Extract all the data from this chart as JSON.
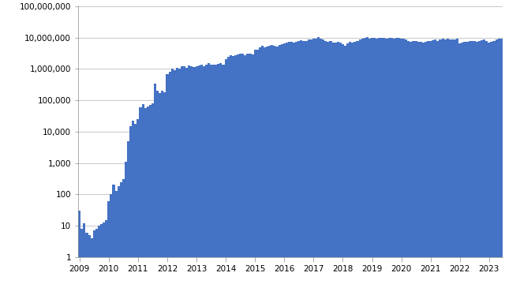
{
  "bar_color": "#4472C4",
  "background_color": "#ffffff",
  "ylim": [
    1,
    100000000
  ],
  "yticks": [
    1,
    10,
    100,
    1000,
    10000,
    100000,
    1000000,
    10000000,
    100000000
  ],
  "ytick_labels": [
    "1",
    "10",
    "100",
    "1,000",
    "10,000",
    "100,000",
    "1,000,000",
    "10,000,000",
    "100,000,000"
  ],
  "grid_color": "#c0c0c0",
  "xlabel_years": [
    "2009",
    "2010",
    "2011",
    "2012",
    "2013",
    "2014",
    "2015",
    "2016",
    "2017",
    "2018",
    "2019",
    "2020",
    "2021",
    "2022",
    "2023"
  ],
  "monthly_values": [
    30,
    8,
    12,
    6,
    5,
    4,
    7,
    8,
    10,
    11,
    13,
    15,
    60,
    100,
    200,
    130,
    180,
    250,
    300,
    1100,
    5000,
    15000,
    22000,
    18000,
    25000,
    60000,
    75000,
    55000,
    65000,
    70000,
    80000,
    350000,
    200000,
    170000,
    200000,
    175000,
    700000,
    800000,
    1000000,
    900000,
    1100000,
    1050000,
    1200000,
    1250000,
    1100000,
    1300000,
    1200000,
    1150000,
    1200000,
    1300000,
    1350000,
    1250000,
    1400000,
    1500000,
    1400000,
    1350000,
    1400000,
    1450000,
    1500000,
    1400000,
    2000000,
    2500000,
    2800000,
    2600000,
    2700000,
    2900000,
    3000000,
    3100000,
    2800000,
    3000000,
    3100000,
    2900000,
    4000000,
    4200000,
    5000000,
    5500000,
    5000000,
    5200000,
    5500000,
    5800000,
    5500000,
    5200000,
    5800000,
    6000000,
    6500000,
    7000000,
    7500000,
    7200000,
    7000000,
    7500000,
    8000000,
    8200000,
    7800000,
    8000000,
    8500000,
    8500000,
    9000000,
    9500000,
    10500000,
    9500000,
    8500000,
    8000000,
    7500000,
    7800000,
    7000000,
    6800000,
    7200000,
    7000000,
    6000000,
    5500000,
    6500000,
    7500000,
    7000000,
    7500000,
    8000000,
    8500000,
    9000000,
    10000000,
    10500000,
    9500000,
    10000000,
    10000000,
    9500000,
    9800000,
    10000000,
    10000000,
    9500000,
    9800000,
    10000000,
    9500000,
    9800000,
    10000000,
    9500000,
    9000000,
    8500000,
    8000000,
    7500000,
    8000000,
    7800000,
    7500000,
    7200000,
    7000000,
    7500000,
    7800000,
    8000000,
    8200000,
    8500000,
    8000000,
    8500000,
    9000000,
    8800000,
    9000000,
    8700000,
    8500000,
    8800000,
    9000000,
    6500000,
    7000000,
    7200000,
    7500000,
    7800000,
    8000000,
    7800000,
    7500000,
    8000000,
    8200000,
    8500000,
    8000000,
    7000000,
    7500000,
    8000000,
    8500000,
    9000000,
    9500000
  ]
}
